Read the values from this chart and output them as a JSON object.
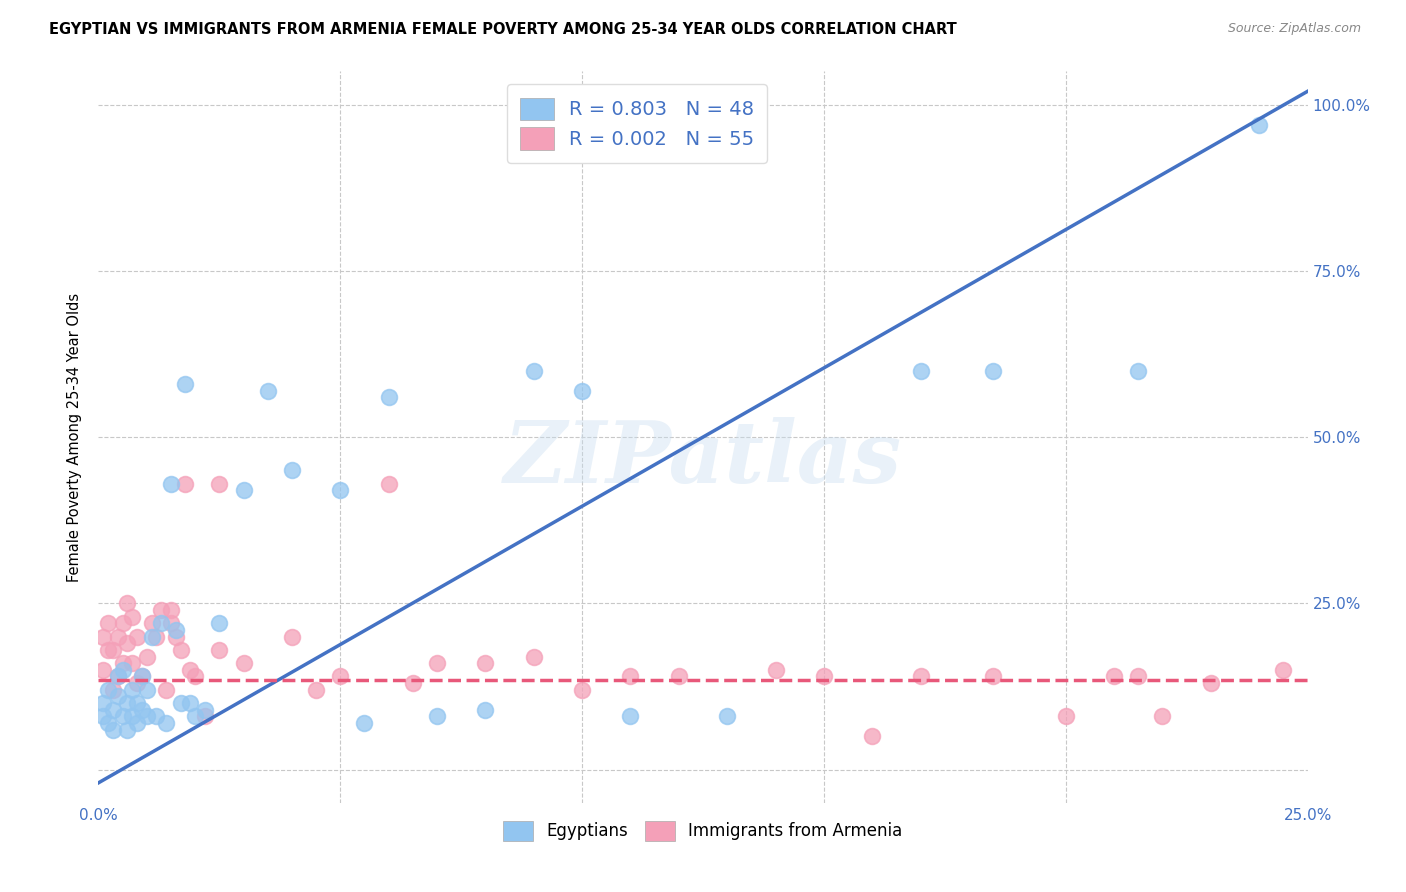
{
  "title": "EGYPTIAN VS IMMIGRANTS FROM ARMENIA FEMALE POVERTY AMONG 25-34 YEAR OLDS CORRELATION CHART",
  "source": "Source: ZipAtlas.com",
  "ylabel": "Female Poverty Among 25-34 Year Olds",
  "xlim": [
    0.0,
    0.25
  ],
  "ylim": [
    -0.05,
    1.05
  ],
  "background_color": "#ffffff",
  "grid_color": "#c8c8c8",
  "watermark": "ZIPatlas",
  "egyptians_color": "#92C5F0",
  "armenians_color": "#F4A0B8",
  "egyptians_line_color": "#4472C4",
  "armenians_line_color": "#E8587A",
  "legend_R1": "R = 0.803",
  "legend_N1": "N = 48",
  "legend_R2": "R = 0.002",
  "legend_N2": "N = 55",
  "eg_line_x0": 0.0,
  "eg_line_y0": -0.02,
  "eg_line_x1": 0.25,
  "eg_line_y1": 1.02,
  "ar_line_x0": 0.0,
  "ar_line_y0": 0.135,
  "ar_line_x1": 0.25,
  "ar_line_y1": 0.135,
  "egyptians_x": [
    0.001,
    0.001,
    0.002,
    0.002,
    0.003,
    0.003,
    0.004,
    0.004,
    0.005,
    0.005,
    0.006,
    0.006,
    0.007,
    0.007,
    0.008,
    0.008,
    0.009,
    0.009,
    0.01,
    0.01,
    0.011,
    0.012,
    0.013,
    0.014,
    0.015,
    0.016,
    0.017,
    0.018,
    0.019,
    0.02,
    0.022,
    0.025,
    0.03,
    0.035,
    0.04,
    0.05,
    0.055,
    0.06,
    0.07,
    0.08,
    0.09,
    0.1,
    0.11,
    0.13,
    0.17,
    0.185,
    0.215,
    0.24
  ],
  "egyptians_y": [
    0.1,
    0.08,
    0.12,
    0.07,
    0.09,
    0.06,
    0.14,
    0.11,
    0.08,
    0.15,
    0.1,
    0.06,
    0.12,
    0.08,
    0.1,
    0.07,
    0.14,
    0.09,
    0.12,
    0.08,
    0.2,
    0.08,
    0.22,
    0.07,
    0.43,
    0.21,
    0.1,
    0.58,
    0.1,
    0.08,
    0.09,
    0.22,
    0.42,
    0.57,
    0.45,
    0.42,
    0.07,
    0.56,
    0.08,
    0.09,
    0.6,
    0.57,
    0.08,
    0.08,
    0.6,
    0.6,
    0.6,
    0.97
  ],
  "armenians_x": [
    0.001,
    0.001,
    0.002,
    0.002,
    0.003,
    0.003,
    0.004,
    0.004,
    0.005,
    0.005,
    0.006,
    0.006,
    0.007,
    0.007,
    0.008,
    0.008,
    0.009,
    0.01,
    0.011,
    0.012,
    0.013,
    0.014,
    0.015,
    0.015,
    0.016,
    0.017,
    0.018,
    0.019,
    0.02,
    0.022,
    0.025,
    0.025,
    0.03,
    0.04,
    0.045,
    0.05,
    0.06,
    0.065,
    0.07,
    0.08,
    0.09,
    0.1,
    0.11,
    0.12,
    0.14,
    0.15,
    0.16,
    0.17,
    0.185,
    0.2,
    0.21,
    0.215,
    0.22,
    0.23,
    0.245
  ],
  "armenians_y": [
    0.15,
    0.2,
    0.18,
    0.22,
    0.12,
    0.18,
    0.2,
    0.14,
    0.22,
    0.16,
    0.25,
    0.19,
    0.23,
    0.16,
    0.2,
    0.13,
    0.14,
    0.17,
    0.22,
    0.2,
    0.24,
    0.12,
    0.22,
    0.24,
    0.2,
    0.18,
    0.43,
    0.15,
    0.14,
    0.08,
    0.18,
    0.43,
    0.16,
    0.2,
    0.12,
    0.14,
    0.43,
    0.13,
    0.16,
    0.16,
    0.17,
    0.12,
    0.14,
    0.14,
    0.15,
    0.14,
    0.05,
    0.14,
    0.14,
    0.08,
    0.14,
    0.14,
    0.08,
    0.13,
    0.15
  ]
}
